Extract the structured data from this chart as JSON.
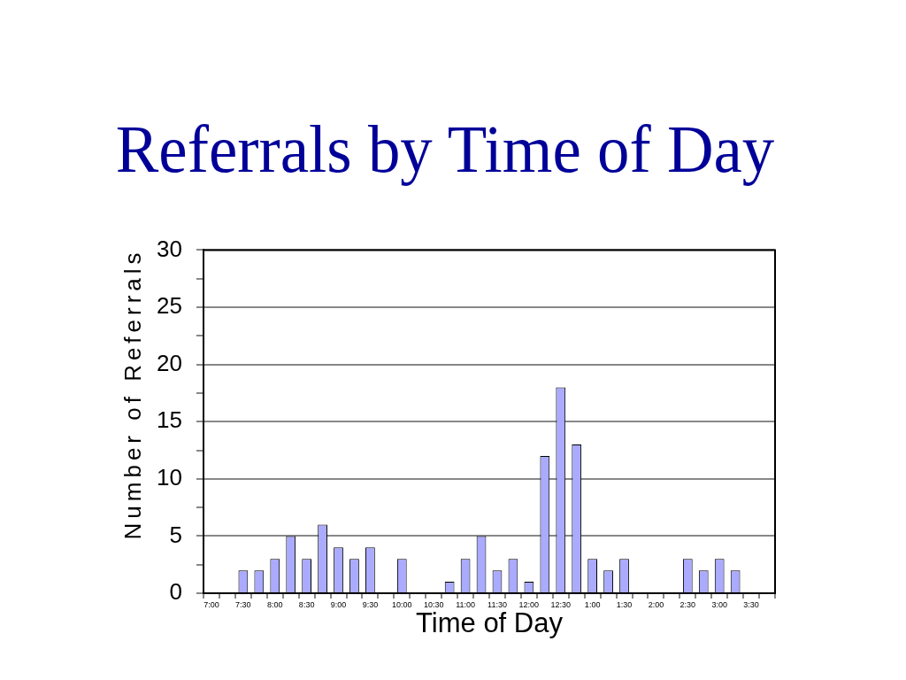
{
  "chart_data": {
    "type": "bar",
    "title": "Referrals by Time of Day",
    "xlabel": "Time of Day",
    "ylabel": "Number of Referrals",
    "categories": [
      "7:00",
      null,
      "7:30",
      null,
      "8:00",
      null,
      "8:30",
      null,
      "9:00",
      null,
      "9:30",
      null,
      "10:00",
      null,
      "10:30",
      null,
      "11:00",
      null,
      "11:30",
      null,
      "12:00",
      null,
      "12:30",
      null,
      "1:00",
      null,
      "1:30",
      null,
      "2:00",
      null,
      "2:30",
      null,
      "3:00",
      null,
      "3:30",
      null
    ],
    "values": [
      0,
      0,
      2,
      2,
      3,
      5,
      3,
      6,
      4,
      3,
      4,
      0,
      3,
      0,
      0,
      1,
      3,
      5,
      2,
      3,
      1,
      12,
      18,
      13,
      3,
      2,
      3,
      0,
      0,
      0,
      3,
      2,
      3,
      2,
      0,
      0
    ],
    "color": "#aaaaff",
    "ylim": [
      0,
      30
    ],
    "yticks": [
      0,
      {
        "value": 2.5,
        "label": null
      },
      5,
      {
        "value": 7.5,
        "label": null
      },
      10,
      {
        "value": 12.5,
        "label": null
      },
      15,
      {
        "value": 17.5,
        "label": null
      },
      20,
      {
        "value": 22.5,
        "label": null
      },
      25,
      {
        "value": 27.5,
        "label": null
      },
      30
    ],
    "grid": "y"
  }
}
